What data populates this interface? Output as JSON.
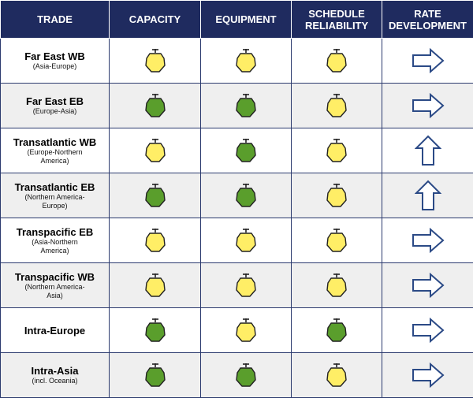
{
  "headers": {
    "trade": "TRADE",
    "capacity": "CAPACITY",
    "equipment": "EQUIPMENT",
    "schedule_reliability": "SCHEDULE RELIABILITY",
    "rate_development": "RATE DEVELOPMENT"
  },
  "colors": {
    "header_bg": "#1f2b5f",
    "yellow": "#ffee66",
    "green": "#5a9e2c",
    "arrow": "#2b4a86"
  },
  "rows": [
    {
      "name": "Far East WB",
      "sub": "(Asia-Europe)",
      "capacity": "yellow",
      "equipment": "yellow",
      "schedule_reliability": "yellow",
      "rate": "right-arrow-icon"
    },
    {
      "name": "Far East EB",
      "sub": "(Europe-Asia)",
      "capacity": "green",
      "equipment": "green",
      "schedule_reliability": "yellow",
      "rate": "right-arrow-icon"
    },
    {
      "name": "Transatlantic WB",
      "sub": "(Europe-Northern America)",
      "capacity": "yellow",
      "equipment": "green",
      "schedule_reliability": "yellow",
      "rate": "up-arrow-icon"
    },
    {
      "name": "Transatlantic EB",
      "sub": "(Northern America-Europe)",
      "capacity": "green",
      "equipment": "green",
      "schedule_reliability": "yellow",
      "rate": "up-arrow-icon"
    },
    {
      "name": "Transpacific EB",
      "sub": "(Asia-Northern America)",
      "capacity": "yellow",
      "equipment": "yellow",
      "schedule_reliability": "yellow",
      "rate": "right-arrow-icon"
    },
    {
      "name": "Transpacific WB",
      "sub": "(Northern America-Asia)",
      "capacity": "yellow",
      "equipment": "yellow",
      "schedule_reliability": "yellow",
      "rate": "right-arrow-icon"
    },
    {
      "name": "Intra-Europe",
      "sub": "",
      "capacity": "green",
      "equipment": "yellow",
      "schedule_reliability": "green",
      "rate": "right-arrow-icon"
    },
    {
      "name": "Intra-Asia",
      "sub": "(incl. Oceania)",
      "capacity": "green",
      "equipment": "green",
      "schedule_reliability": "yellow",
      "rate": "right-arrow-icon"
    }
  ]
}
